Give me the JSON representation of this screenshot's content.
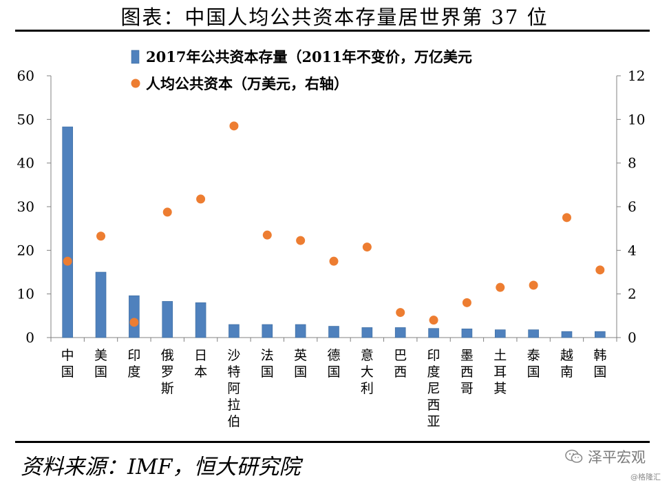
{
  "title": "图表：中国人均公共资本存量居世界第 37 位",
  "source": "资料来源：IMF，恒大研究院",
  "watermark": {
    "brand": "泽平宏观",
    "credit": "@格隆汇"
  },
  "chart_data": {
    "type": "bar",
    "categories": [
      "中国",
      "美国",
      "印度",
      "俄罗斯",
      "日本",
      "沙特阿拉伯",
      "法国",
      "英国",
      "德国",
      "意大利",
      "巴西",
      "印度尼西亚",
      "墨西哥",
      "土耳其",
      "泰国",
      "越南",
      "韩国"
    ],
    "series": [
      {
        "name": "2017年公共资本存量（2011年不变价，万亿美元",
        "kind": "bar",
        "axis": "left",
        "color": "#4f81bd",
        "values": [
          48.3,
          15.0,
          9.6,
          8.3,
          8.0,
          3.0,
          3.0,
          3.0,
          2.6,
          2.3,
          2.3,
          2.1,
          2.0,
          1.8,
          1.8,
          1.4,
          1.4
        ]
      },
      {
        "name": "人均公共资本（万美元，右轴）",
        "kind": "scatter",
        "axis": "right",
        "color": "#ed7d31",
        "values": [
          3.5,
          4.65,
          0.7,
          5.75,
          6.35,
          9.7,
          4.7,
          4.45,
          3.5,
          4.15,
          1.15,
          0.8,
          1.6,
          2.3,
          2.4,
          5.5,
          3.1
        ]
      }
    ],
    "yleft": {
      "ylim": [
        0,
        60
      ],
      "ticks": [
        "0",
        "10",
        "20",
        "30",
        "40",
        "50",
        "60"
      ]
    },
    "yright": {
      "ylim": [
        0,
        12
      ],
      "ticks": [
        "0",
        "2",
        "4",
        "6",
        "8",
        "10",
        "12"
      ]
    },
    "legend": "top-center"
  }
}
